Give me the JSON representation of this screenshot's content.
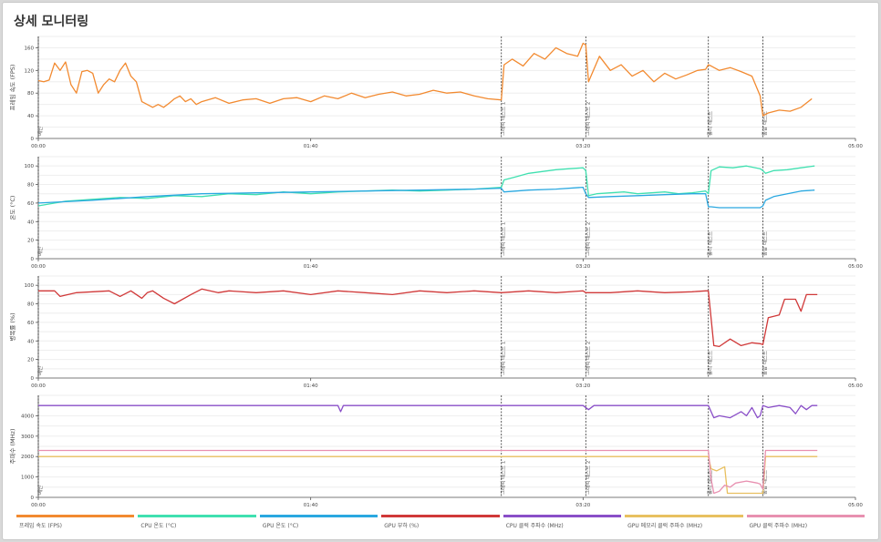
{
  "page": {
    "title": "상세 모니터링"
  },
  "chart_data": [
    {
      "type": "line",
      "ylabel": "프레임 속도 (FPS)",
      "ylim": [
        0,
        180
      ],
      "yticks": [
        0,
        40,
        80,
        120,
        160
      ],
      "xlim": [
        0,
        300
      ],
      "xticks": [
        0,
        100,
        200,
        300
      ],
      "xtick_labels": [
        "00:00",
        "01:40",
        "03:20",
        "05:00"
      ],
      "events": [
        {
          "x": 0,
          "label": "메인"
        },
        {
          "x": 170,
          "label": "그래픽 테스트 1"
        },
        {
          "x": 201,
          "label": "그래픽 테스트 2"
        },
        {
          "x": 246,
          "label": "물리 테스트"
        },
        {
          "x": 266,
          "label": "통합 테스트"
        }
      ],
      "series": [
        {
          "name": "프레임 속도",
          "color": "#f28a30",
          "x": [
            0,
            2,
            4,
            6,
            8,
            10,
            12,
            14,
            16,
            18,
            20,
            22,
            24,
            26,
            28,
            30,
            32,
            34,
            36,
            38,
            40,
            42,
            44,
            46,
            48,
            50,
            52,
            54,
            56,
            58,
            60,
            65,
            70,
            75,
            80,
            85,
            90,
            95,
            100,
            105,
            110,
            115,
            120,
            125,
            130,
            135,
            140,
            145,
            150,
            155,
            160,
            165,
            170,
            171,
            174,
            178,
            182,
            186,
            190,
            194,
            198,
            200,
            201,
            202,
            206,
            210,
            214,
            218,
            222,
            226,
            230,
            234,
            238,
            242,
            245,
            246,
            247,
            250,
            254,
            258,
            262,
            265,
            266,
            268,
            272,
            276,
            280,
            284
          ],
          "values": [
            102,
            100,
            103,
            133,
            120,
            135,
            95,
            80,
            118,
            120,
            115,
            80,
            95,
            105,
            100,
            120,
            133,
            110,
            100,
            65,
            60,
            55,
            60,
            55,
            62,
            70,
            75,
            65,
            70,
            60,
            65,
            72,
            62,
            68,
            70,
            62,
            70,
            72,
            65,
            75,
            70,
            80,
            72,
            78,
            82,
            75,
            78,
            85,
            80,
            82,
            75,
            70,
            68,
            130,
            140,
            128,
            150,
            140,
            160,
            150,
            145,
            168,
            165,
            100,
            145,
            120,
            130,
            110,
            120,
            100,
            115,
            105,
            112,
            120,
            122,
            130,
            128,
            120,
            125,
            118,
            110,
            75,
            40,
            45,
            50,
            48,
            55,
            70
          ]
        }
      ]
    },
    {
      "type": "line",
      "ylabel": "온도 (°C)",
      "ylim": [
        0,
        110
      ],
      "yticks": [
        0,
        20,
        40,
        60,
        80,
        100
      ],
      "xlim": [
        0,
        300
      ],
      "xticks": [
        0,
        100,
        200,
        300
      ],
      "xtick_labels": [
        "00:00",
        "01:40",
        "03:20",
        "05:00"
      ],
      "events": [
        {
          "x": 0,
          "label": "메인"
        },
        {
          "x": 170,
          "label": "그래픽 테스트 1"
        },
        {
          "x": 201,
          "label": "그래픽 테스트 2"
        },
        {
          "x": 246,
          "label": "물리 테스트"
        },
        {
          "x": 266,
          "label": "통합 테스트"
        }
      ],
      "series": [
        {
          "name": "CPU 온도",
          "color": "#40e0b0",
          "x": [
            0,
            10,
            20,
            30,
            40,
            50,
            60,
            70,
            80,
            90,
            100,
            110,
            120,
            130,
            140,
            150,
            160,
            170,
            171,
            175,
            180,
            185,
            190,
            195,
            200,
            201,
            202,
            205,
            210,
            215,
            220,
            225,
            230,
            235,
            240,
            245,
            246,
            247,
            250,
            255,
            260,
            265,
            266,
            267,
            270,
            275,
            280,
            285
          ],
          "values": [
            57,
            62,
            64,
            66,
            65,
            68,
            67,
            70,
            69,
            72,
            70,
            72,
            73,
            74,
            73,
            74,
            75,
            77,
            85,
            88,
            92,
            94,
            96,
            97,
            98,
            95,
            68,
            70,
            71,
            72,
            70,
            71,
            72,
            70,
            71,
            73,
            70,
            95,
            99,
            98,
            100,
            97,
            95,
            92,
            95,
            96,
            98,
            100
          ]
        },
        {
          "name": "GPU 온도",
          "color": "#2aa8e0",
          "x": [
            0,
            20,
            40,
            60,
            80,
            100,
            120,
            140,
            160,
            170,
            171,
            180,
            190,
            200,
            201,
            202,
            210,
            220,
            230,
            240,
            245,
            246,
            247,
            250,
            260,
            265,
            266,
            267,
            270,
            275,
            280,
            285
          ],
          "values": [
            60,
            63,
            67,
            70,
            71,
            72,
            73,
            74,
            75,
            76,
            72,
            74,
            75,
            77,
            70,
            66,
            67,
            68,
            69,
            70,
            70,
            56,
            56,
            55,
            55,
            55,
            57,
            63,
            67,
            70,
            73,
            74
          ]
        }
      ]
    },
    {
      "type": "line",
      "ylabel": "병목률 (%)",
      "ylim": [
        0,
        110
      ],
      "yticks": [
        0,
        20,
        40,
        60,
        80,
        100
      ],
      "xlim": [
        0,
        300
      ],
      "xticks": [
        0,
        100,
        200,
        300
      ],
      "xtick_labels": [
        "00:00",
        "01:40",
        "03:20",
        "05:00"
      ],
      "events": [
        {
          "x": 0,
          "label": "메인"
        },
        {
          "x": 170,
          "label": "그래픽 테스트 1"
        },
        {
          "x": 201,
          "label": "그래픽 테스트 2"
        },
        {
          "x": 246,
          "label": "물리 테스트"
        },
        {
          "x": 266,
          "label": "통합 테스트"
        }
      ],
      "series": [
        {
          "name": "GPU 부하",
          "color": "#d03838",
          "x": [
            0,
            6,
            8,
            14,
            20,
            26,
            30,
            34,
            38,
            40,
            42,
            46,
            50,
            56,
            60,
            66,
            70,
            80,
            90,
            100,
            110,
            120,
            130,
            140,
            150,
            160,
            170,
            180,
            190,
            200,
            201,
            210,
            220,
            230,
            240,
            245,
            246,
            248,
            250,
            254,
            258,
            262,
            265,
            266,
            268,
            272,
            274,
            278,
            280,
            282,
            286
          ],
          "values": [
            94,
            94,
            88,
            92,
            93,
            94,
            88,
            94,
            86,
            92,
            94,
            86,
            80,
            90,
            96,
            92,
            94,
            92,
            94,
            90,
            94,
            92,
            90,
            94,
            92,
            94,
            92,
            94,
            92,
            94,
            92,
            92,
            94,
            92,
            93,
            94,
            94,
            35,
            34,
            42,
            35,
            38,
            37,
            36,
            65,
            68,
            85,
            85,
            72,
            90,
            90
          ]
        }
      ]
    },
    {
      "type": "line",
      "ylabel": "주파수 (MHz)",
      "ylim": [
        0,
        5000
      ],
      "yticks": [
        0,
        1000,
        2000,
        3000,
        4000
      ],
      "xlim": [
        0,
        300
      ],
      "xticks": [
        0,
        100,
        200,
        300
      ],
      "xtick_labels": [
        "00:00",
        "01:40",
        "03:20",
        "05:00"
      ],
      "events": [
        {
          "x": 0,
          "label": "메인"
        },
        {
          "x": 170,
          "label": "그래픽 테스트 1"
        },
        {
          "x": 201,
          "label": "그래픽 테스트 2"
        },
        {
          "x": 246,
          "label": "물리 테스트"
        },
        {
          "x": 266,
          "label": "통합 테스트"
        }
      ],
      "series": [
        {
          "name": "CPU 클럭 주파수",
          "color": "#8a4fc8",
          "x": [
            0,
            50,
            110,
            111,
            112,
            113,
            200,
            202,
            204,
            206,
            246,
            248,
            250,
            254,
            258,
            260,
            262,
            264,
            265,
            266,
            268,
            272,
            276,
            278,
            280,
            282,
            284,
            286
          ],
          "values": [
            4500,
            4500,
            4500,
            4200,
            4500,
            4500,
            4500,
            4300,
            4500,
            4500,
            4500,
            3900,
            4000,
            3900,
            4200,
            4000,
            4400,
            3900,
            4000,
            4500,
            4400,
            4500,
            4400,
            4100,
            4500,
            4300,
            4500,
            4500
          ]
        },
        {
          "name": "GPU 메모리 클럭 주파수",
          "color": "#e8c060",
          "x": [
            0,
            246,
            247,
            249,
            252,
            253,
            266,
            267,
            286
          ],
          "values": [
            2000,
            2000,
            1400,
            1300,
            1500,
            200,
            200,
            2000,
            2000
          ]
        },
        {
          "name": "GPU 클럭 주파수",
          "color": "#e890b0",
          "x": [
            0,
            246,
            247,
            248,
            250,
            252,
            254,
            256,
            260,
            262,
            264,
            265,
            266,
            267,
            286
          ],
          "values": [
            2300,
            2300,
            900,
            200,
            300,
            600,
            500,
            700,
            800,
            750,
            700,
            650,
            400,
            2300,
            2300
          ]
        }
      ]
    }
  ],
  "legend": [
    {
      "label": "프레임 속도 (FPS)",
      "color": "#f28a30"
    },
    {
      "label": "CPU 온도 (°C)",
      "color": "#40e0b0"
    },
    {
      "label": "GPU 온도 (°C)",
      "color": "#2aa8e0"
    },
    {
      "label": "GPU 부하 (%)",
      "color": "#d03838"
    },
    {
      "label": "CPU 클럭 주파수 (MHz)",
      "color": "#8a4fc8"
    },
    {
      "label": "GPU 메모리 클럭 주파수 (MHz)",
      "color": "#e8c060"
    },
    {
      "label": "GPU 클럭 주파수 (MHz)",
      "color": "#e890b0"
    }
  ]
}
